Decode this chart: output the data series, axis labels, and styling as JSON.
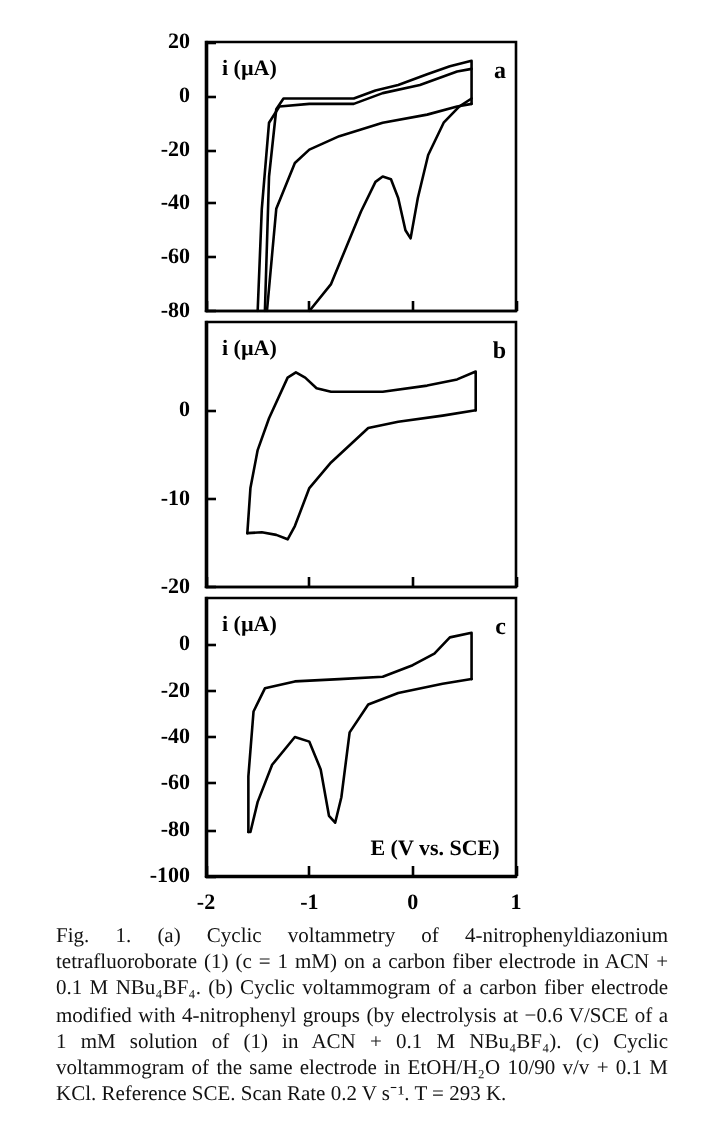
{
  "chart_data": [
    {
      "type": "line",
      "title": "a",
      "ylabel": "i (µA)",
      "xlim": [
        -2,
        1
      ],
      "xticks": [
        -2,
        -1,
        0,
        1
      ],
      "ylim": [
        -80,
        20
      ],
      "yticks": [
        -80,
        -60,
        -40,
        -20,
        0,
        20
      ],
      "tick_labels": "y",
      "series": [
        {
          "color": "#000000",
          "x": [
            0.57,
            0.45,
            0.3,
            0.15,
            0.05,
            -0.02,
            -0.07,
            -0.14,
            -0.21,
            -0.29,
            -0.36,
            -0.5,
            -0.64,
            -0.79,
            -1.0
          ],
          "values": [
            -1,
            -4,
            -10,
            -22,
            -38,
            -53,
            -50,
            -38,
            -31,
            -30,
            -32,
            -43,
            -56,
            -70,
            -80
          ]
        },
        {
          "color": "#000000",
          "x": [
            -1.41,
            -1.32,
            -1.14,
            -1.0,
            -0.71,
            -0.29,
            0.14,
            0.43,
            0.57
          ],
          "values": [
            -80,
            -42,
            -25,
            -20,
            -15,
            -10,
            -7,
            -4,
            -3
          ]
        },
        {
          "color": "#000000",
          "x": [
            0.57,
            0.57,
            0.36,
            0.14,
            -0.14,
            -0.36,
            -0.57,
            -0.86,
            -1.14,
            -1.25,
            -1.32,
            -1.39,
            -1.43
          ],
          "values": [
            -3,
            13,
            11,
            8,
            4,
            2,
            -1,
            -1,
            -1,
            -1,
            -5,
            -30,
            -80
          ]
        },
        {
          "color": "#000000",
          "x": [
            -1.5,
            -1.46,
            -1.39,
            -1.29,
            -1.0,
            -0.57,
            -0.29,
            0.07,
            0.43,
            0.57
          ],
          "values": [
            -80,
            -42,
            -10,
            -4,
            -3,
            -3,
            1,
            4,
            9,
            10
          ]
        }
      ]
    },
    {
      "type": "line",
      "title": "b",
      "ylabel": "i (µA)",
      "xlim": [
        -2,
        1
      ],
      "xticks": [
        -2,
        -1,
        0,
        1
      ],
      "ylim": [
        -20,
        10
      ],
      "yticks": [
        -20,
        -10,
        0
      ],
      "tick_labels": "y",
      "series": [
        {
          "color": "#000000",
          "x": [
            0.61,
            0.61,
            0.43,
            0.14,
            -0.29,
            -0.79,
            -0.93,
            -1.04,
            -1.13,
            -1.21,
            -1.39,
            -1.5,
            -1.57,
            -1.6
          ],
          "values": [
            0,
            4.4,
            3.5,
            2.8,
            2.1,
            2.1,
            2.5,
            3.7,
            4.3,
            3.7,
            -0.9,
            -4.5,
            -8.8,
            -13.9
          ]
        },
        {
          "color": "#000000",
          "x": [
            -1.6,
            -1.46,
            -1.32,
            -1.21,
            -1.14,
            -1.0,
            -0.79,
            -0.43,
            -0.14,
            0.29,
            0.61
          ],
          "values": [
            -13.9,
            -13.8,
            -14.1,
            -14.6,
            -13.1,
            -8.8,
            -5.9,
            -2,
            -1.3,
            -0.6,
            0
          ]
        }
      ]
    },
    {
      "type": "line",
      "title": "c",
      "ylabel": "i (µA)",
      "xlabel": "E (V vs. SCE)",
      "xlim": [
        -2,
        1
      ],
      "xticks": [
        -2,
        -1,
        0,
        1
      ],
      "ylim": [
        -100,
        20
      ],
      "yticks": [
        -100,
        -80,
        -60,
        -40,
        -20,
        0
      ],
      "series": [
        {
          "color": "#000000",
          "x": [
            0.57,
            0.57,
            0.36,
            0.21,
            0.0,
            -0.29,
            -0.71,
            -1.14,
            -1.43,
            -1.54,
            -1.59,
            -1.59
          ],
          "values": [
            -15,
            5,
            3,
            -4,
            -9,
            -14,
            -15,
            -16,
            -19,
            -29,
            -57,
            -81
          ]
        },
        {
          "color": "#000000",
          "x": [
            -1.59,
            -1.57,
            -1.5,
            -1.36,
            -1.14,
            -1.0,
            -0.89,
            -0.81,
            -0.75,
            -0.69,
            -0.61,
            -0.43,
            -0.14,
            0.29,
            0.57
          ],
          "values": [
            -81,
            -81,
            -68,
            -52,
            -40,
            -42,
            -54,
            -74,
            -77,
            -66,
            -38,
            -26,
            -21,
            -17,
            -15
          ]
        }
      ],
      "annotations": [
        "Fig. 1. (a) Cyclic voltammetry of 4-nitrophenyldiazonium tetrafluoroborate (1) (c = 1 mM) on a carbon fiber electrode in ACN + 0.1 M NBu₄BF₄. (b) Cyclic voltammogram of a carbon fiber electrode modified with 4-nitrophenyl groups (by electrolysis at −0.6 V/SCE of a 1 mM solution of (1) in ACN + 0.1 M NBu₄BF₄). (c) Cyclic voltammogram of the same electrode in EtOH/H₂O 10/90 v/v + 0.1 M KCl. Reference SCE. Scan Rate 0.2 V s⁻¹. T = 293 K."
      ]
    }
  ]
}
